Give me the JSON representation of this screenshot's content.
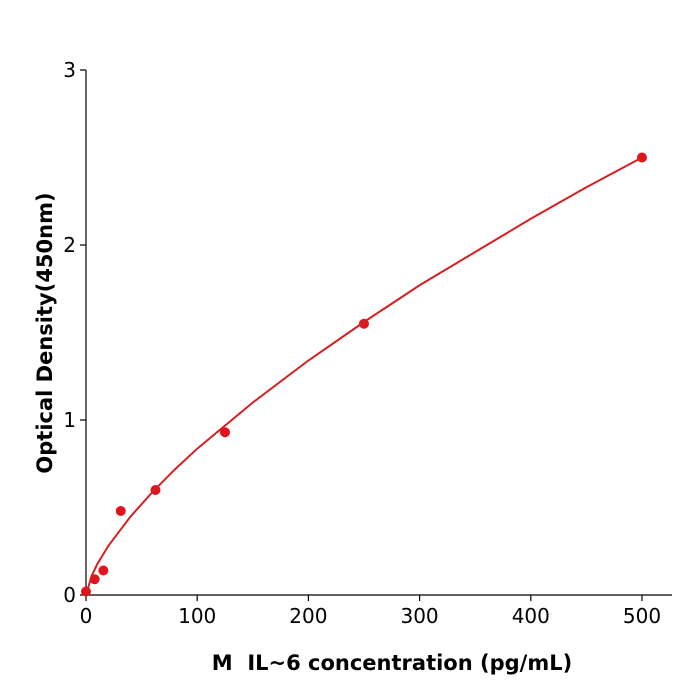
{
  "chart_data": {
    "type": "scatter",
    "x_label": "M  IL~6 concentration (pg/mL)",
    "y_label": "Optical Density(450nm)",
    "xlim": [
      0,
      527
    ],
    "ylim": [
      0,
      3
    ],
    "xticks": [
      0,
      100,
      200,
      300,
      400,
      500
    ],
    "yticks": [
      0,
      1,
      2,
      3
    ],
    "series": [
      {
        "mode": "markers",
        "color": "#e0151b",
        "x": [
          0,
          7.8,
          15.6,
          31.25,
          62.5,
          125,
          250,
          500
        ],
        "values": [
          0.02,
          0.09,
          0.14,
          0.48,
          0.6,
          0.93,
          1.55,
          2.5
        ]
      },
      {
        "mode": "line",
        "color": "#d42020",
        "x": [
          0,
          5,
          10,
          20,
          40,
          60,
          80,
          100,
          150,
          200,
          250,
          300,
          350,
          400,
          450,
          500
        ],
        "values": [
          0,
          0.109,
          0.175,
          0.28,
          0.448,
          0.59,
          0.718,
          0.836,
          1.1,
          1.34,
          1.56,
          1.77,
          1.96,
          2.15,
          2.33,
          2.5
        ]
      }
    ]
  }
}
